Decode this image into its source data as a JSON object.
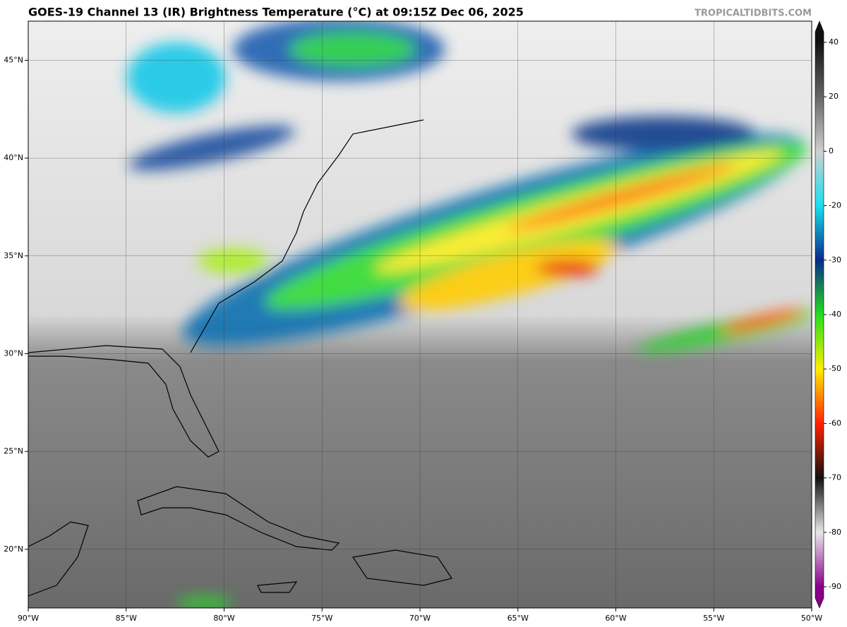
{
  "header": {
    "title": "GOES-19 Channel 13 (IR) Brightness Temperature (°C) at 09:15Z Dec 06, 2025",
    "credit": "TROPICALTIDBITS.COM"
  },
  "map": {
    "lonlim": [
      -90,
      -50
    ],
    "latlim": [
      17,
      47
    ],
    "lon_ticks": [
      {
        "value": -90,
        "label": "90°W"
      },
      {
        "value": -85,
        "label": "85°W"
      },
      {
        "value": -80,
        "label": "80°W"
      },
      {
        "value": -75,
        "label": "75°W"
      },
      {
        "value": -70,
        "label": "70°W"
      },
      {
        "value": -65,
        "label": "65°W"
      },
      {
        "value": -60,
        "label": "60°W"
      },
      {
        "value": -55,
        "label": "55°W"
      },
      {
        "value": -50,
        "label": "50°W"
      }
    ],
    "lat_ticks": [
      {
        "value": 20,
        "label": "20°N"
      },
      {
        "value": 25,
        "label": "25°N"
      },
      {
        "value": 30,
        "label": "30°N"
      },
      {
        "value": 35,
        "label": "35°N"
      },
      {
        "value": 40,
        "label": "40°N"
      },
      {
        "value": 45,
        "label": "45°N"
      }
    ]
  },
  "colorbar": {
    "ticks": [
      40,
      20,
      0,
      -20,
      -30,
      -40,
      -50,
      -60,
      -70,
      -80,
      -90
    ],
    "colors": [
      "#111111",
      "#666666",
      "#cfcfcf",
      "#19e0f0",
      "#0a2a8a",
      "#22dd22",
      "#ffee00",
      "#ff2200",
      "#111111",
      "#e8e8e8",
      "#880088"
    ]
  }
}
